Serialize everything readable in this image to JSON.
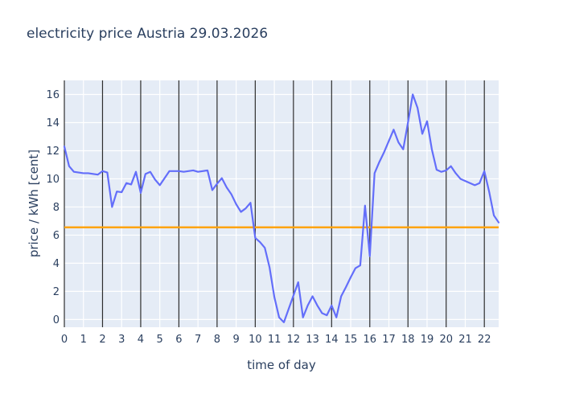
{
  "title": "electricity price Austria 29.03.2026",
  "chart_data": {
    "type": "line",
    "title": "electricity price Austria 29.03.2026",
    "xlabel": "time of day",
    "ylabel": "price / kWh [cent]",
    "x_start": 0,
    "x_step": 0.25,
    "values": [
      12.3,
      10.9,
      10.5,
      10.45,
      10.4,
      10.4,
      10.35,
      10.3,
      10.55,
      10.45,
      8.0,
      9.1,
      9.05,
      9.7,
      9.6,
      10.5,
      9.0,
      10.35,
      10.5,
      9.95,
      9.55,
      10.05,
      10.55,
      10.55,
      10.55,
      10.5,
      10.55,
      10.6,
      10.5,
      10.55,
      10.6,
      9.2,
      9.65,
      10.05,
      9.4,
      8.9,
      8.2,
      7.65,
      7.9,
      8.3,
      5.8,
      5.5,
      5.1,
      3.7,
      1.6,
      0.15,
      -0.2,
      0.75,
      1.7,
      2.65,
      0.15,
      1.0,
      1.65,
      1.0,
      0.45,
      0.3,
      1.0,
      0.15,
      1.65,
      2.3,
      3.0,
      3.65,
      3.85,
      8.1,
      4.5,
      10.4,
      11.2,
      11.9,
      12.7,
      13.5,
      12.6,
      12.1,
      14.0,
      16.0,
      15.05,
      13.2,
      14.1,
      12.1,
      10.65,
      10.5,
      10.6,
      10.9,
      10.4,
      10.0,
      9.85,
      9.7,
      9.55,
      9.7,
      10.55,
      9.1,
      7.4,
      6.9
    ],
    "reference_hline": 6.55,
    "xlim": [
      0,
      22.75
    ],
    "ylim": [
      -0.55,
      17.0
    ],
    "x_ticks": [
      0,
      1,
      2,
      3,
      4,
      5,
      6,
      7,
      8,
      9,
      10,
      11,
      12,
      13,
      14,
      15,
      16,
      17,
      18,
      19,
      20,
      21,
      22
    ],
    "y_ticks": [
      0,
      2,
      4,
      6,
      8,
      10,
      12,
      14,
      16
    ],
    "dark_vline_every_hours": 2,
    "grid": true,
    "legend": false,
    "colors": {
      "line": "#636efa",
      "reference_line": "#ffa412",
      "plot_bg": "#e5ecf6",
      "grid": "#ffffff",
      "dark_vline": "#2e2e2e",
      "font": "#2a3f5f"
    }
  }
}
